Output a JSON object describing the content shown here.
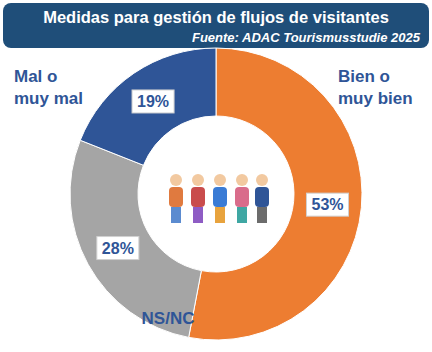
{
  "chart_data": {
    "type": "donut",
    "title": "Medidas para gestión de flujos de visitantes",
    "subtitle": "Fuente: ADAC Tourismusstudie 2025",
    "categories": [
      "Bien o muy bien",
      "NS/NC",
      "Mal o muy mal"
    ],
    "values": [
      53,
      28,
      19
    ],
    "value_labels": [
      "53%",
      "28%",
      "19%"
    ],
    "colors": [
      "#ED7D31",
      "#A5A5A5",
      "#2F5597"
    ],
    "data_labels": true
  }
}
